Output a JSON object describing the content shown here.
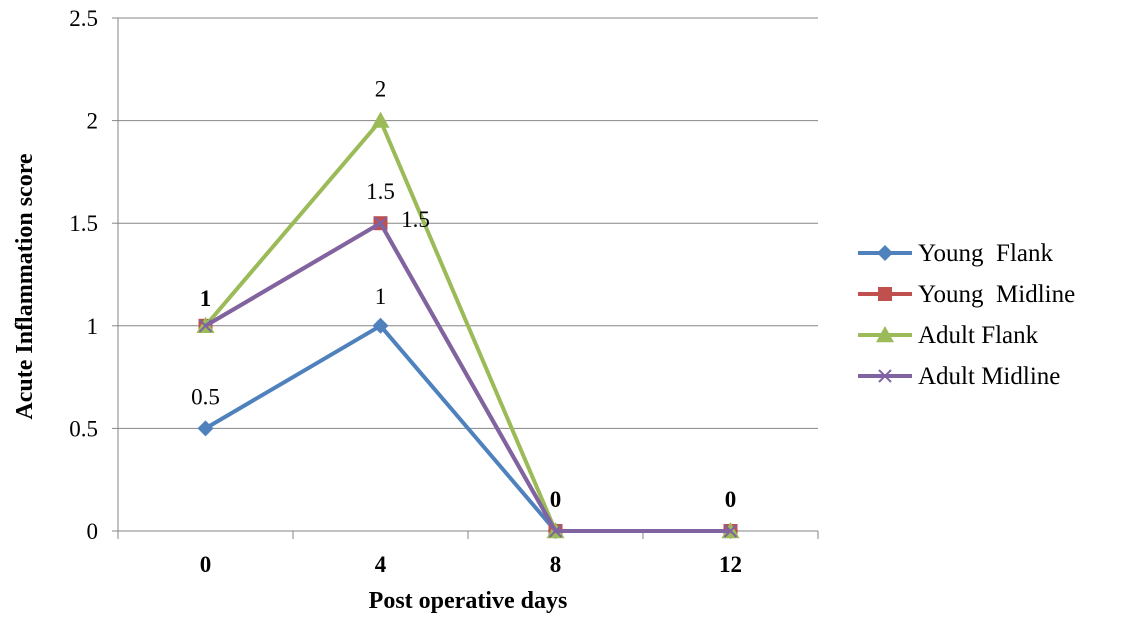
{
  "chart_data": {
    "type": "line",
    "xlabel": "Post operative days",
    "ylabel": "Acute Inflammation score",
    "categories": [
      "0",
      "4",
      "8",
      "12"
    ],
    "ylim": [
      0,
      2.5
    ],
    "yticks": [
      "0",
      "0.5",
      "1",
      "1.5",
      "2",
      "2.5"
    ],
    "grid": true,
    "legend_position": "right",
    "series": [
      {
        "name": "Young  Flank",
        "values": [
          0.5,
          1,
          0,
          0
        ],
        "color": "#4f81bd",
        "marker": "diamond"
      },
      {
        "name": "Young  Midline",
        "values": [
          1,
          1.5,
          0,
          0
        ],
        "color": "#c0504d",
        "marker": "square"
      },
      {
        "name": "Adult Flank",
        "values": [
          1,
          2,
          0,
          0
        ],
        "color": "#9bbb59",
        "marker": "triangle"
      },
      {
        "name": "Adult Midline",
        "values": [
          1,
          1.5,
          0,
          0
        ],
        "color": "#8064a2",
        "marker": "x"
      }
    ],
    "data_labels": [
      {
        "series": 0,
        "point": 0,
        "text": "0.5",
        "bold": false
      },
      {
        "series": 0,
        "point": 1,
        "text": "1",
        "bold": false
      },
      {
        "series": 1,
        "point": 1,
        "text": "1.5",
        "bold": false
      },
      {
        "series": 2,
        "point": 0,
        "text": "1",
        "bold": true
      },
      {
        "series": 2,
        "point": 1,
        "text": "2",
        "bold": false
      },
      {
        "series": 3,
        "point": 1,
        "text": "1.5",
        "bold": false
      },
      {
        "series": 2,
        "point": 2,
        "text": "0",
        "bold": true
      },
      {
        "series": 2,
        "point": 3,
        "text": "0",
        "bold": true
      }
    ]
  }
}
